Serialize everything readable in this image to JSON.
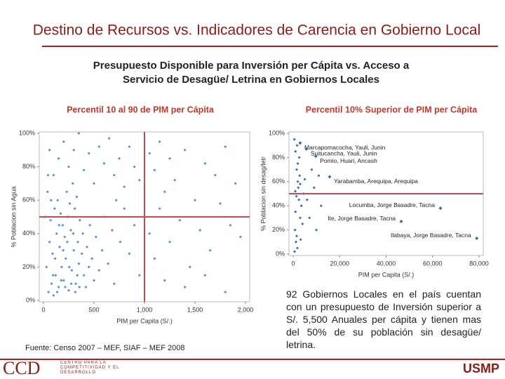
{
  "header": {
    "title": "Destino de Recursos vs. Indicadores de Carencia en Gobierno Local",
    "subtitle_line1": "Presupuesto Disponible para Inversión per Cápita vs. Acceso a",
    "subtitle_line2": "Servicio de Desagüe/ Letrina en Gobiernos Locales"
  },
  "chart_data": [
    {
      "type": "scatter",
      "title": "Percentil 10 al 90 de PIM per Cápita",
      "x_label": "PIM per Capita (S/.)",
      "y_label": "% Poblacion sin Agua",
      "color": "#4f8fd0",
      "ref_color": "#c0504d",
      "ref_x": 1000,
      "ref_y": 50,
      "xlim": [
        0,
        2000
      ],
      "ylim": [
        0,
        100
      ],
      "xticks": [
        0,
        500,
        {
          "value": 1000,
          "label": "1,000"
        },
        {
          "value": 1500,
          "label": "1,500"
        },
        {
          "value": 2000,
          "label": "2,000"
        }
      ],
      "yticks": [
        {
          "value": 0,
          "label": "0%"
        },
        {
          "value": 20,
          "label": "20%"
        },
        {
          "value": 40,
          "label": "40%"
        },
        {
          "value": 60,
          "label": "60%"
        },
        {
          "value": 80,
          "label": "80%"
        },
        {
          "value": 100,
          "label": "100%"
        }
      ],
      "x": [
        50,
        80,
        100,
        120,
        150,
        180,
        200,
        220,
        250,
        280,
        300,
        320,
        350,
        60,
        90,
        130,
        160,
        190,
        210,
        240,
        270,
        310,
        340,
        380,
        400,
        420,
        450,
        70,
        110,
        140,
        170,
        230,
        260,
        290,
        330,
        360,
        390,
        430,
        460,
        480,
        500,
        520,
        550,
        580,
        600,
        640,
        680,
        700,
        720,
        760,
        800,
        850,
        900,
        950,
        100,
        150,
        200,
        250,
        300,
        350,
        400,
        450,
        500,
        550,
        600,
        650,
        700,
        750,
        800,
        850,
        900,
        950,
        1050,
        1100,
        1150,
        1200,
        1250,
        1300,
        1400,
        1500,
        1600,
        1700,
        1800,
        1900,
        1050,
        1100,
        1150,
        1250,
        1350,
        1450,
        1550,
        1650,
        1750,
        1850,
        1950,
        1200,
        1400,
        1600,
        1800,
        40,
        60,
        30,
        20,
        45,
        75,
        95,
        115,
        135,
        155,
        175,
        195,
        215,
        235,
        255,
        275,
        295,
        315,
        335,
        355
      ],
      "y": [
        5,
        10,
        3,
        15,
        8,
        20,
        12,
        25,
        6,
        18,
        30,
        10,
        22,
        35,
        28,
        40,
        32,
        45,
        38,
        50,
        42,
        55,
        35,
        28,
        15,
        8,
        20,
        48,
        55,
        60,
        52,
        65,
        58,
        70,
        62,
        48,
        40,
        32,
        45,
        25,
        12,
        38,
        18,
        30,
        50,
        22,
        42,
        10,
        60,
        35,
        55,
        28,
        45,
        15,
        75,
        85,
        95,
        80,
        90,
        100,
        78,
        88,
        70,
        92,
        82,
        97,
        75,
        85,
        68,
        92,
        80,
        72,
        88,
        78,
        95,
        65,
        85,
        72,
        90,
        60,
        82,
        75,
        92,
        70,
        40,
        25,
        55,
        35,
        48,
        20,
        42,
        30,
        58,
        45,
        38,
        12,
        8,
        15,
        5,
        65,
        90,
        20,
        50,
        75,
        60,
        15,
        25,
        5,
        45,
        12,
        30,
        8,
        35,
        20,
        10,
        40,
        5,
        15,
        8
      ]
    },
    {
      "type": "scatter",
      "title": "Percentil 10% Superior de PIM per Cápita",
      "x_label": "PIM per Capita (S/.)",
      "y_label": "% Poblacion sin desag/letr",
      "color": "#2f6db5",
      "ref_color": "#c0504d",
      "ref_y": 50,
      "xlim": [
        0,
        80000
      ],
      "ylim": [
        0,
        100
      ],
      "xticks": [
        0,
        {
          "value": 20000,
          "label": "20,000"
        },
        {
          "value": 40000,
          "label": "40,000"
        },
        {
          "value": 60000,
          "label": "60,000"
        },
        {
          "value": 80000,
          "label": "80,000"
        }
      ],
      "yticks": [
        {
          "value": 0,
          "label": "0%"
        },
        {
          "value": 20,
          "label": "20%"
        },
        {
          "value": 40,
          "label": "40%"
        },
        {
          "value": 60,
          "label": "60%"
        },
        {
          "value": 80,
          "label": "80%"
        },
        {
          "value": 100,
          "label": "100%"
        }
      ],
      "x": [
        500,
        1000,
        1500,
        2000,
        2500,
        3000,
        800,
        1200,
        1800,
        2200,
        2800,
        3500,
        4000,
        4500,
        1000,
        1500,
        2000,
        3000,
        5000,
        6000,
        7000,
        9000,
        12000,
        10000,
        8000,
        11000,
        600,
        1400,
        2600,
        3200,
        1700,
        900
      ],
      "y": [
        95,
        85,
        70,
        60,
        45,
        30,
        20,
        10,
        5,
        55,
        65,
        40,
        25,
        50,
        35,
        15,
        75,
        58,
        62,
        45,
        30,
        55,
        40,
        20,
        70,
        65,
        2,
        48,
        80,
        12,
        90,
        52
      ],
      "annotations": [
        {
          "text": "Marcapomacocha, Yauli, Junin",
          "x": 3000,
          "y": 92
        },
        {
          "text": "Suitucancha, Yauli, Junin",
          "x": 5700,
          "y": 87
        },
        {
          "text": "Pomio, Huari, Ancash",
          "x": 9700,
          "y": 81
        },
        {
          "text": "Yarabamba, Arequipa, Arequipa",
          "x": 15700,
          "y": 64
        },
        {
          "text": "Locumba, Jorge Basadre, Tacna",
          "x": 63400,
          "y": 38
        },
        {
          "text": "Ite, Jorge Basadre, Tacna",
          "x": 46500,
          "y": 27
        },
        {
          "text": "Ilabaya, Jorge Basadre, Tacna",
          "x": 79000,
          "y": 13
        }
      ]
    }
  ],
  "note": "92 Gobiernos Locales en el país cuentan con un presupuesto de Inversión superior a S/. 5,500 Anuales per cápita y tienen mas del 50% de su población sin desagüe/ letrina.",
  "source": "Fuente: Censo 2007 – MEF, SIAF – MEF 2008",
  "footer": {
    "left_logo": "CCD",
    "left_text": "CENTRO PARA LA COMPETITIVIDAD Y EL DESARROLLO",
    "right_logo": "USMP"
  }
}
